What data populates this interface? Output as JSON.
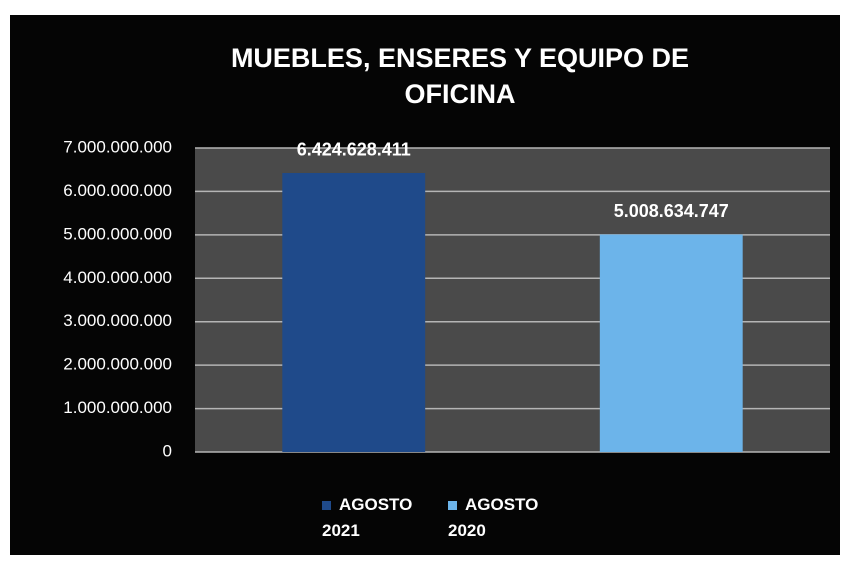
{
  "chart_data": {
    "type": "bar",
    "title": "MUEBLES, ENSERES Y EQUIPO DE OFICINA",
    "categories": [
      null
    ],
    "series": [
      {
        "name": "AGOSTO 2021",
        "color": "#1f4a8a",
        "values": [
          6424628411
        ],
        "value_labels": [
          "6.424.628.411"
        ]
      },
      {
        "name": "AGOSTO 2020",
        "color": "#6cb4ea",
        "values": [
          5008634747
        ],
        "value_labels": [
          "5.008.634.747"
        ]
      }
    ],
    "ylim": [
      0,
      7000000000
    ],
    "yticks": [
      0,
      {
        "value": 1000000000,
        "label": "1.000.000.000"
      },
      {
        "value": 2000000000,
        "label": "2.000.000.000"
      },
      {
        "value": 3000000000,
        "label": "3.000.000.000"
      },
      {
        "value": 4000000000,
        "label": "4.000.000.000"
      },
      {
        "value": 5000000000,
        "label": "5.000.000.000"
      },
      {
        "value": 6000000000,
        "label": "6.000.000.000"
      },
      {
        "value": 7000000000,
        "label": "7.000.000.000"
      }
    ],
    "grid": true,
    "legend": "bottom"
  }
}
